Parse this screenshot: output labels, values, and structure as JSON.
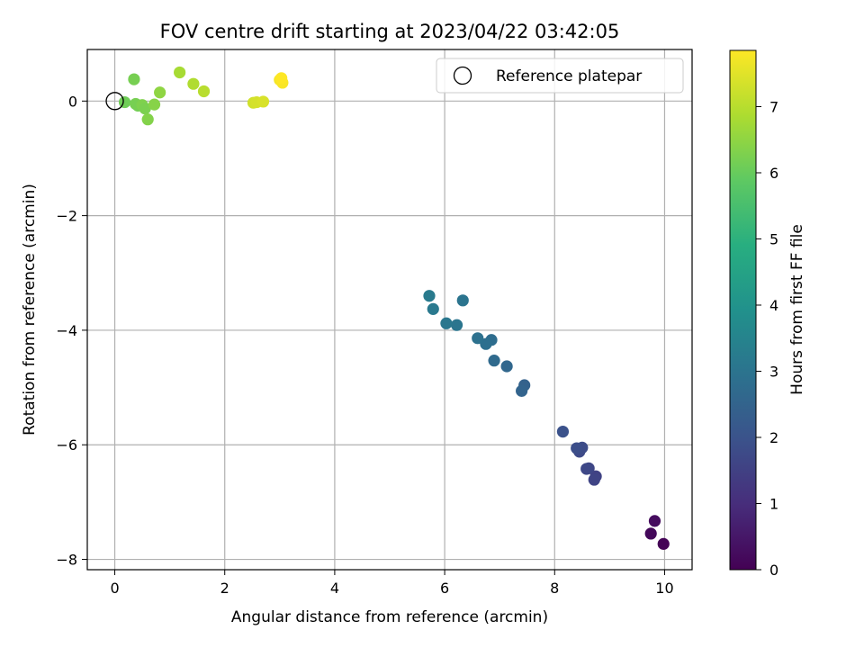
{
  "chart_data": {
    "type": "scatter",
    "title": "FOV centre drift starting at 2023/04/22 03:42:05",
    "xlabel": "Angular distance from reference (arcmin)",
    "ylabel": "Rotation from reference (arcmin)",
    "xlim": [
      -0.5,
      10.5
    ],
    "ylim": [
      -8.18,
      0.9
    ],
    "xticks": [
      0,
      2,
      4,
      6,
      8,
      10
    ],
    "yticks": [
      0,
      -2,
      -4,
      -6,
      -8
    ],
    "xtick_labels": [
      "0",
      "2",
      "4",
      "6",
      "8",
      "10"
    ],
    "ytick_labels": [
      "0",
      "−2",
      "−4",
      "−6",
      "−8"
    ],
    "grid": true,
    "colormap": "viridis",
    "colorbar": {
      "label": "Hours from first FF file",
      "range": [
        0,
        7.85
      ],
      "ticks": [
        0,
        1,
        2,
        3,
        4,
        5,
        6,
        7
      ],
      "tick_labels": [
        "0",
        "1",
        "2",
        "3",
        "4",
        "5",
        "6",
        "7"
      ]
    },
    "legend": {
      "position": "top-right",
      "entries": [
        "Reference platepar"
      ]
    },
    "reference_point": {
      "x": 0,
      "y": 0
    },
    "points": [
      {
        "x": 9.98,
        "y": -7.73,
        "c": 0.05
      },
      {
        "x": 9.75,
        "y": -7.55,
        "c": 0.15
      },
      {
        "x": 9.82,
        "y": -7.33,
        "c": 0.25
      },
      {
        "x": 8.75,
        "y": -6.55,
        "c": 1.55
      },
      {
        "x": 8.72,
        "y": -6.61,
        "c": 1.6
      },
      {
        "x": 8.62,
        "y": -6.41,
        "c": 1.65
      },
      {
        "x": 8.58,
        "y": -6.42,
        "c": 1.7
      },
      {
        "x": 8.45,
        "y": -6.12,
        "c": 1.75
      },
      {
        "x": 8.5,
        "y": -6.05,
        "c": 1.8
      },
      {
        "x": 8.4,
        "y": -6.06,
        "c": 1.85
      },
      {
        "x": 8.15,
        "y": -5.77,
        "c": 1.95
      },
      {
        "x": 7.45,
        "y": -4.96,
        "c": 2.45
      },
      {
        "x": 7.4,
        "y": -5.06,
        "c": 2.5
      },
      {
        "x": 7.13,
        "y": -4.63,
        "c": 2.6
      },
      {
        "x": 6.9,
        "y": -4.53,
        "c": 2.7
      },
      {
        "x": 6.85,
        "y": -4.17,
        "c": 2.8
      },
      {
        "x": 6.75,
        "y": -4.24,
        "c": 2.85
      },
      {
        "x": 6.6,
        "y": -4.14,
        "c": 2.9
      },
      {
        "x": 6.33,
        "y": -3.48,
        "c": 3.0
      },
      {
        "x": 6.22,
        "y": -3.91,
        "c": 3.05
      },
      {
        "x": 6.03,
        "y": -3.88,
        "c": 3.1
      },
      {
        "x": 5.79,
        "y": -3.63,
        "c": 3.15
      },
      {
        "x": 5.72,
        "y": -3.4,
        "c": 3.2
      },
      {
        "x": 0.35,
        "y": 0.38,
        "c": 6.2
      },
      {
        "x": 0.18,
        "y": -0.02,
        "c": 6.1
      },
      {
        "x": 0.42,
        "y": -0.08,
        "c": 6.15
      },
      {
        "x": 0.38,
        "y": -0.05,
        "c": 6.2
      },
      {
        "x": 0.5,
        "y": -0.07,
        "c": 6.3
      },
      {
        "x": 0.55,
        "y": -0.13,
        "c": 6.25
      },
      {
        "x": 0.6,
        "y": -0.32,
        "c": 6.35
      },
      {
        "x": 0.72,
        "y": -0.06,
        "c": 6.4
      },
      {
        "x": 0.82,
        "y": 0.15,
        "c": 6.5
      },
      {
        "x": 1.18,
        "y": 0.5,
        "c": 6.8
      },
      {
        "x": 1.43,
        "y": 0.3,
        "c": 6.9
      },
      {
        "x": 1.62,
        "y": 0.17,
        "c": 7.0
      },
      {
        "x": 2.52,
        "y": -0.03,
        "c": 7.3
      },
      {
        "x": 2.58,
        "y": -0.02,
        "c": 7.35
      },
      {
        "x": 2.7,
        "y": -0.01,
        "c": 7.4
      },
      {
        "x": 3.0,
        "y": 0.37,
        "c": 7.75
      },
      {
        "x": 3.05,
        "y": 0.32,
        "c": 7.8
      },
      {
        "x": 3.03,
        "y": 0.4,
        "c": 7.85
      }
    ]
  }
}
